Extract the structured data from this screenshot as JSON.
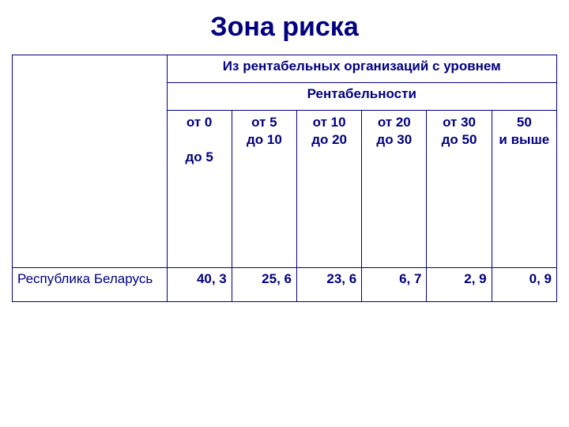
{
  "title": "Зона риска",
  "header1": "Из рентабельных организаций с уровнем",
  "header2": "Рентабельности",
  "columns": [
    {
      "line1": "от 0",
      "line2": "",
      "line3": "до 5"
    },
    {
      "line1": "от 5",
      "line2": "до 10",
      "line3": ""
    },
    {
      "line1": "от 10",
      "line2": "до 20",
      "line3": ""
    },
    {
      "line1": "от 20",
      "line2": "до 30",
      "line3": ""
    },
    {
      "line1": "от 30",
      "line2": "до 50",
      "line3": ""
    },
    {
      "line1": "50",
      "line2": "и выше",
      "line3": ""
    }
  ],
  "row": {
    "label": "Республика Беларусь",
    "values": [
      "40, 3",
      "25, 6",
      "23, 6",
      "6, 7",
      "2, 9",
      "0, 9"
    ]
  },
  "colors": {
    "text": "#000080",
    "border": "#000080",
    "background": "#ffffff"
  }
}
